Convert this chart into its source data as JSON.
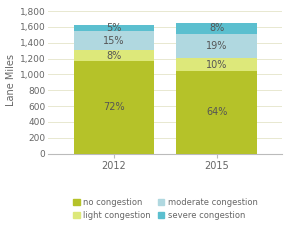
{
  "years": [
    "2012",
    "2015"
  ],
  "total": [
    1630,
    1630
  ],
  "segments_order": [
    "no congestion",
    "light congestion",
    "moderate congestion",
    "severe congestion"
  ],
  "segments": {
    "no congestion": {
      "pcts": [
        72,
        64
      ],
      "color": "#b5c229"
    },
    "light congestion": {
      "pcts": [
        8,
        10
      ],
      "color": "#dde87a"
    },
    "moderate congestion": {
      "pcts": [
        15,
        19
      ],
      "color": "#b0d8e0"
    },
    "severe congestion": {
      "pcts": [
        5,
        8
      ],
      "color": "#5bbfcf"
    }
  },
  "legend_order": [
    "no congestion",
    "light congestion",
    "moderate congestion",
    "severe congestion"
  ],
  "ylabel": "Lane Miles",
  "yticks": [
    0,
    200,
    400,
    600,
    800,
    1000,
    1200,
    1400,
    1600,
    1800
  ],
  "ylim": [
    0,
    1870
  ],
  "bar_width": 0.55,
  "bar_positions": [
    0.3,
    1.0
  ],
  "xlim": [
    -0.15,
    1.45
  ],
  "background_color": "#ffffff",
  "grid_color": "#e8e8d0",
  "label_fontsize": 7,
  "tick_fontsize": 6.5,
  "legend_fontsize": 6.0,
  "ylabel_fontsize": 7
}
